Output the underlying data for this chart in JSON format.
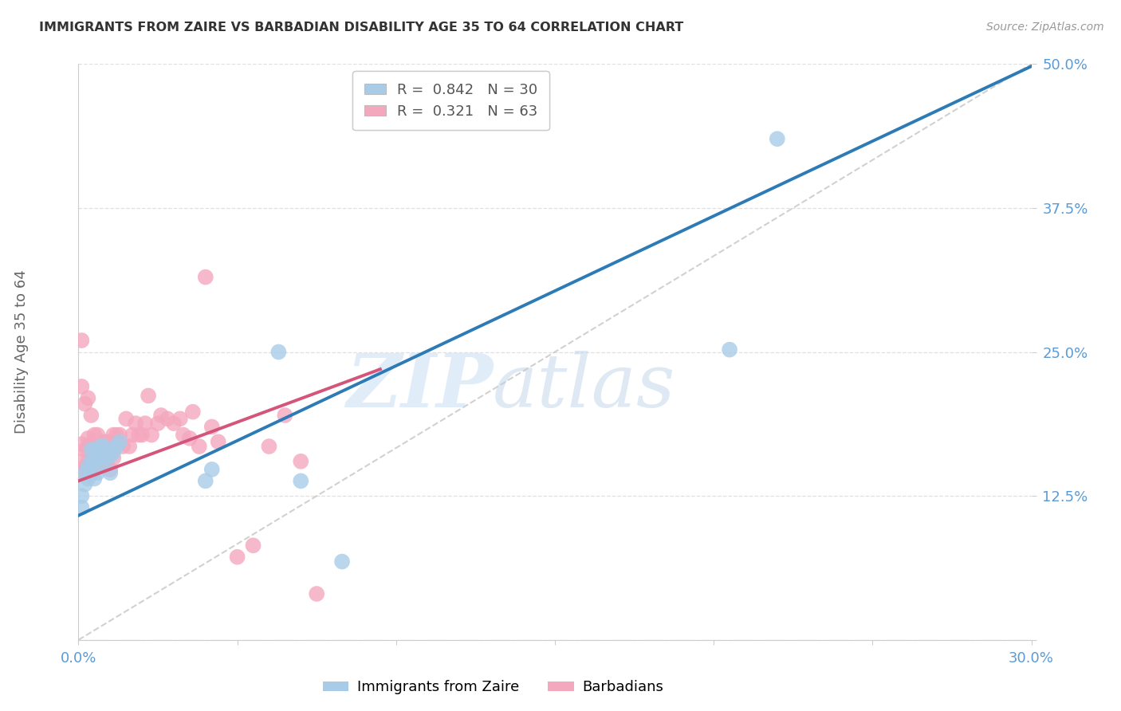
{
  "title": "IMMIGRANTS FROM ZAIRE VS BARBADIAN DISABILITY AGE 35 TO 64 CORRELATION CHART",
  "source": "Source: ZipAtlas.com",
  "ylabel_label": "Disability Age 35 to 64",
  "xlim": [
    0.0,
    0.3
  ],
  "ylim": [
    0.0,
    0.5
  ],
  "xticks": [
    0.0,
    0.05,
    0.1,
    0.15,
    0.2,
    0.25,
    0.3
  ],
  "yticks": [
    0.0,
    0.125,
    0.25,
    0.375,
    0.5
  ],
  "ytick_labels_right": [
    "",
    "12.5%",
    "25.0%",
    "37.5%",
    "50.0%"
  ],
  "xtick_labels": [
    "0.0%",
    "",
    "",
    "",
    "",
    "",
    "30.0%"
  ],
  "zaire_r": 0.842,
  "zaire_n": 30,
  "barbadian_r": 0.321,
  "barbadian_n": 63,
  "zaire_color": "#a8cce8",
  "barbadian_color": "#f4a8be",
  "zaire_line_color": "#2c7bb6",
  "barbadian_line_color": "#d4547a",
  "diagonal_color": "#cccccc",
  "watermark_zip": "ZIP",
  "watermark_atlas": "atlas",
  "background_color": "#ffffff",
  "grid_color": "#e0e0e0",
  "tick_label_color": "#5b9bd5",
  "title_color": "#333333",
  "zaire_line_x": [
    0.0,
    0.3
  ],
  "zaire_line_y": [
    0.108,
    0.498
  ],
  "barbadian_line_x": [
    0.0,
    0.095
  ],
  "barbadian_line_y": [
    0.138,
    0.235
  ],
  "zaire_points_x": [
    0.001,
    0.001,
    0.002,
    0.002,
    0.003,
    0.003,
    0.004,
    0.004,
    0.005,
    0.005,
    0.005,
    0.006,
    0.006,
    0.007,
    0.007,
    0.008,
    0.008,
    0.009,
    0.01,
    0.01,
    0.011,
    0.012,
    0.013,
    0.04,
    0.042,
    0.063,
    0.07,
    0.083,
    0.205,
    0.22
  ],
  "zaire_points_y": [
    0.115,
    0.125,
    0.135,
    0.145,
    0.14,
    0.15,
    0.155,
    0.165,
    0.14,
    0.155,
    0.165,
    0.145,
    0.16,
    0.155,
    0.168,
    0.16,
    0.168,
    0.158,
    0.145,
    0.16,
    0.163,
    0.168,
    0.172,
    0.138,
    0.148,
    0.25,
    0.138,
    0.068,
    0.252,
    0.435
  ],
  "barbadian_points_x": [
    0.0003,
    0.001,
    0.001,
    0.001,
    0.001,
    0.002,
    0.002,
    0.002,
    0.003,
    0.003,
    0.003,
    0.003,
    0.004,
    0.004,
    0.004,
    0.004,
    0.005,
    0.005,
    0.005,
    0.005,
    0.006,
    0.006,
    0.006,
    0.007,
    0.007,
    0.008,
    0.008,
    0.009,
    0.009,
    0.01,
    0.01,
    0.011,
    0.011,
    0.012,
    0.013,
    0.014,
    0.015,
    0.016,
    0.017,
    0.018,
    0.019,
    0.02,
    0.021,
    0.022,
    0.023,
    0.025,
    0.026,
    0.028,
    0.03,
    0.032,
    0.033,
    0.035,
    0.036,
    0.038,
    0.04,
    0.042,
    0.044,
    0.05,
    0.055,
    0.06,
    0.065,
    0.07,
    0.075
  ],
  "barbadian_points_y": [
    0.155,
    0.145,
    0.17,
    0.22,
    0.26,
    0.15,
    0.165,
    0.205,
    0.155,
    0.165,
    0.175,
    0.21,
    0.145,
    0.155,
    0.17,
    0.195,
    0.148,
    0.16,
    0.168,
    0.178,
    0.152,
    0.162,
    0.178,
    0.158,
    0.17,
    0.152,
    0.172,
    0.158,
    0.172,
    0.148,
    0.165,
    0.158,
    0.178,
    0.178,
    0.178,
    0.168,
    0.192,
    0.168,
    0.178,
    0.188,
    0.178,
    0.178,
    0.188,
    0.212,
    0.178,
    0.188,
    0.195,
    0.192,
    0.188,
    0.192,
    0.178,
    0.175,
    0.198,
    0.168,
    0.315,
    0.185,
    0.172,
    0.072,
    0.082,
    0.168,
    0.195,
    0.155,
    0.04
  ]
}
